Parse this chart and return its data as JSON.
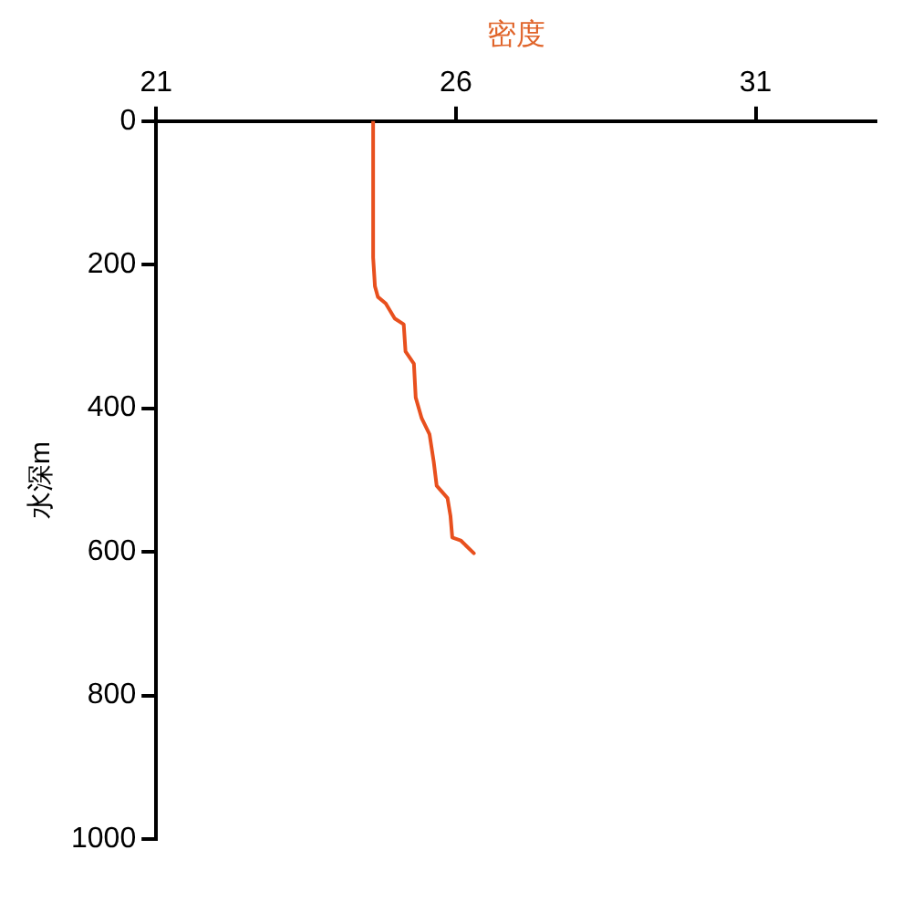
{
  "chart_data": {
    "type": "line",
    "xlabel": "密度",
    "ylabel": "水深m",
    "xlim": [
      21,
      33
    ],
    "xticks": [
      21,
      26,
      31
    ],
    "ylim": [
      1000,
      0
    ],
    "yticks": [
      0,
      200,
      400,
      600,
      800,
      1000
    ],
    "grid": false,
    "legend": false,
    "marker": "none",
    "series": [
      {
        "color": "#e8501e",
        "x": [
          24.62,
          24.62,
          24.65,
          24.7,
          24.83,
          24.98,
          25.13,
          25.16,
          25.3,
          25.33,
          25.43,
          25.56,
          25.63,
          25.68,
          25.86,
          25.91,
          25.94,
          26.08,
          26.3
        ],
        "values": [
          0,
          190,
          230,
          245,
          254,
          275,
          283,
          321,
          338,
          385,
          414,
          436,
          474,
          508,
          525,
          550,
          580,
          584,
          602
        ]
      }
    ]
  }
}
